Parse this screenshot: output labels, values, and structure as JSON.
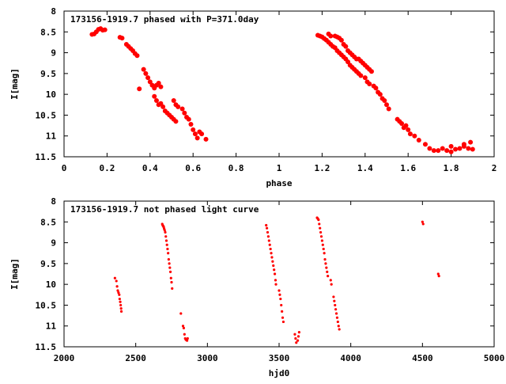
{
  "colors": {
    "points": "#ff0000",
    "frame": "#000000",
    "background": "#ffffff"
  },
  "chart_data": [
    {
      "type": "scatter",
      "title": "173156-1919.7 phased with P=371.0day",
      "xlabel": "phase",
      "ylabel": "I[mag]",
      "xlim": [
        0,
        2
      ],
      "ylim": [
        11.5,
        8
      ],
      "y_inverted": true,
      "xticks": [
        "0",
        "0.2",
        "0.4",
        "0.6",
        "0.8",
        "1",
        "1.2",
        "1.4",
        "1.6",
        "1.8",
        "2"
      ],
      "yticks": [
        "8",
        "8.5",
        "9",
        "9.5",
        "10",
        "10.5",
        "11",
        "11.5"
      ],
      "grid": false,
      "marker": "filled-circle",
      "points": [
        [
          0.13,
          8.56
        ],
        [
          0.14,
          8.55
        ],
        [
          0.15,
          8.5
        ],
        [
          0.16,
          8.44
        ],
        [
          0.17,
          8.42
        ],
        [
          0.18,
          8.46
        ],
        [
          0.19,
          8.45
        ],
        [
          0.26,
          8.63
        ],
        [
          0.27,
          8.65
        ],
        [
          0.29,
          8.8
        ],
        [
          0.3,
          8.85
        ],
        [
          0.31,
          8.9
        ],
        [
          0.32,
          8.95
        ],
        [
          0.33,
          9.02
        ],
        [
          0.34,
          9.07
        ],
        [
          0.35,
          9.87
        ],
        [
          0.37,
          9.4
        ],
        [
          0.38,
          9.5
        ],
        [
          0.39,
          9.6
        ],
        [
          0.4,
          9.7
        ],
        [
          0.41,
          9.78
        ],
        [
          0.42,
          9.85
        ],
        [
          0.43,
          9.78
        ],
        [
          0.44,
          9.73
        ],
        [
          0.45,
          9.82
        ],
        [
          0.42,
          10.05
        ],
        [
          0.43,
          10.15
        ],
        [
          0.44,
          10.25
        ],
        [
          0.45,
          10.22
        ],
        [
          0.46,
          10.3
        ],
        [
          0.47,
          10.4
        ],
        [
          0.48,
          10.45
        ],
        [
          0.49,
          10.5
        ],
        [
          0.5,
          10.55
        ],
        [
          0.51,
          10.6
        ],
        [
          0.52,
          10.65
        ],
        [
          0.51,
          10.15
        ],
        [
          0.52,
          10.25
        ],
        [
          0.53,
          10.3
        ],
        [
          0.55,
          10.35
        ],
        [
          0.56,
          10.45
        ],
        [
          0.57,
          10.55
        ],
        [
          0.58,
          10.6
        ],
        [
          0.59,
          10.72
        ],
        [
          0.6,
          10.85
        ],
        [
          0.61,
          10.95
        ],
        [
          0.62,
          11.05
        ],
        [
          0.63,
          10.9
        ],
        [
          0.64,
          10.95
        ],
        [
          0.66,
          11.08
        ],
        [
          1.18,
          8.58
        ],
        [
          1.19,
          8.6
        ],
        [
          1.2,
          8.62
        ],
        [
          1.21,
          8.66
        ],
        [
          1.22,
          8.7
        ],
        [
          1.23,
          8.75
        ],
        [
          1.24,
          8.8
        ],
        [
          1.25,
          8.85
        ],
        [
          1.23,
          8.55
        ],
        [
          1.24,
          8.6
        ],
        [
          1.26,
          8.6
        ],
        [
          1.27,
          8.62
        ],
        [
          1.28,
          8.65
        ],
        [
          1.29,
          8.7
        ],
        [
          1.26,
          8.88
        ],
        [
          1.27,
          8.95
        ],
        [
          1.28,
          9.0
        ],
        [
          1.29,
          9.05
        ],
        [
          1.3,
          9.1
        ],
        [
          1.31,
          9.15
        ],
        [
          1.32,
          9.22
        ],
        [
          1.3,
          8.8
        ],
        [
          1.31,
          8.85
        ],
        [
          1.32,
          8.95
        ],
        [
          1.33,
          9.0
        ],
        [
          1.34,
          9.05
        ],
        [
          1.35,
          9.1
        ],
        [
          1.36,
          9.15
        ],
        [
          1.33,
          9.3
        ],
        [
          1.34,
          9.35
        ],
        [
          1.35,
          9.4
        ],
        [
          1.36,
          9.45
        ],
        [
          1.37,
          9.5
        ],
        [
          1.38,
          9.55
        ],
        [
          1.37,
          9.15
        ],
        [
          1.38,
          9.2
        ],
        [
          1.39,
          9.25
        ],
        [
          1.4,
          9.3
        ],
        [
          1.41,
          9.35
        ],
        [
          1.42,
          9.4
        ],
        [
          1.43,
          9.45
        ],
        [
          1.4,
          9.6
        ],
        [
          1.41,
          9.7
        ],
        [
          1.42,
          9.75
        ],
        [
          1.44,
          9.8
        ],
        [
          1.45,
          9.85
        ],
        [
          1.46,
          9.95
        ],
        [
          1.47,
          10.0
        ],
        [
          1.48,
          10.1
        ],
        [
          1.49,
          10.15
        ],
        [
          1.5,
          10.25
        ],
        [
          1.51,
          10.35
        ],
        [
          1.55,
          10.6
        ],
        [
          1.56,
          10.65
        ],
        [
          1.57,
          10.7
        ],
        [
          1.58,
          10.8
        ],
        [
          1.59,
          10.75
        ],
        [
          1.6,
          10.85
        ],
        [
          1.61,
          10.95
        ],
        [
          1.63,
          11.0
        ],
        [
          1.65,
          11.1
        ],
        [
          1.68,
          11.2
        ],
        [
          1.7,
          11.3
        ],
        [
          1.72,
          11.35
        ],
        [
          1.74,
          11.35
        ],
        [
          1.76,
          11.3
        ],
        [
          1.78,
          11.35
        ],
        [
          1.8,
          11.38
        ],
        [
          1.82,
          11.32
        ],
        [
          1.84,
          11.3
        ],
        [
          1.86,
          11.25
        ],
        [
          1.88,
          11.3
        ],
        [
          1.9,
          11.32
        ],
        [
          1.8,
          11.25
        ],
        [
          1.86,
          11.2
        ],
        [
          1.89,
          11.15
        ]
      ]
    },
    {
      "type": "scatter",
      "title": "173156-1919.7 not phased light curve",
      "xlabel": "hjd0",
      "ylabel": "I[mag]",
      "xlim": [
        2000,
        5000
      ],
      "ylim": [
        11.5,
        8
      ],
      "y_inverted": true,
      "xticks": [
        "2000",
        "2500",
        "3000",
        "3500",
        "4000",
        "4500",
        "5000"
      ],
      "yticks": [
        "8",
        "8.5",
        "9",
        "9.5",
        "10",
        "10.5",
        "11",
        "11.5"
      ],
      "grid": false,
      "marker": "small-dot",
      "points": [
        [
          2355,
          9.85
        ],
        [
          2365,
          9.92
        ],
        [
          2370,
          10.05
        ],
        [
          2375,
          10.15
        ],
        [
          2380,
          10.2
        ],
        [
          2385,
          10.25
        ],
        [
          2388,
          10.35
        ],
        [
          2392,
          10.42
        ],
        [
          2395,
          10.5
        ],
        [
          2398,
          10.58
        ],
        [
          2400,
          10.65
        ],
        [
          2685,
          8.55
        ],
        [
          2688,
          8.58
        ],
        [
          2692,
          8.6
        ],
        [
          2695,
          8.62
        ],
        [
          2698,
          8.66
        ],
        [
          2702,
          8.7
        ],
        [
          2706,
          8.75
        ],
        [
          2710,
          8.85
        ],
        [
          2714,
          8.95
        ],
        [
          2718,
          9.05
        ],
        [
          2722,
          9.15
        ],
        [
          2726,
          9.25
        ],
        [
          2730,
          9.4
        ],
        [
          2734,
          9.5
        ],
        [
          2738,
          9.6
        ],
        [
          2742,
          9.7
        ],
        [
          2746,
          9.85
        ],
        [
          2750,
          9.95
        ],
        [
          2754,
          10.1
        ],
        [
          2815,
          10.7
        ],
        [
          2830,
          11.0
        ],
        [
          2835,
          11.05
        ],
        [
          2840,
          11.2
        ],
        [
          2845,
          11.3
        ],
        [
          2850,
          11.33
        ],
        [
          2858,
          11.35
        ],
        [
          2862,
          11.3
        ],
        [
          3410,
          8.58
        ],
        [
          3415,
          8.65
        ],
        [
          3420,
          8.75
        ],
        [
          3425,
          8.85
        ],
        [
          3430,
          8.95
        ],
        [
          3435,
          9.05
        ],
        [
          3440,
          9.15
        ],
        [
          3445,
          9.25
        ],
        [
          3450,
          9.35
        ],
        [
          3455,
          9.45
        ],
        [
          3460,
          9.55
        ],
        [
          3465,
          9.65
        ],
        [
          3470,
          9.75
        ],
        [
          3475,
          9.9
        ],
        [
          3478,
          10.0
        ],
        [
          3500,
          10.15
        ],
        [
          3505,
          10.25
        ],
        [
          3510,
          10.35
        ],
        [
          3515,
          10.5
        ],
        [
          3520,
          10.65
        ],
        [
          3525,
          10.8
        ],
        [
          3530,
          10.9
        ],
        [
          3610,
          11.2
        ],
        [
          3615,
          11.3
        ],
        [
          3620,
          11.4
        ],
        [
          3630,
          11.35
        ],
        [
          3635,
          11.25
        ],
        [
          3640,
          11.15
        ],
        [
          3765,
          8.4
        ],
        [
          3770,
          8.42
        ],
        [
          3775,
          8.45
        ],
        [
          3780,
          8.55
        ],
        [
          3785,
          8.65
        ],
        [
          3790,
          8.75
        ],
        [
          3795,
          8.85
        ],
        [
          3800,
          8.95
        ],
        [
          3805,
          9.05
        ],
        [
          3810,
          9.15
        ],
        [
          3815,
          9.25
        ],
        [
          3820,
          9.4
        ],
        [
          3825,
          9.5
        ],
        [
          3830,
          9.6
        ],
        [
          3835,
          9.7
        ],
        [
          3840,
          9.8
        ],
        [
          3860,
          9.9
        ],
        [
          3865,
          10.0
        ],
        [
          3880,
          10.3
        ],
        [
          3885,
          10.4
        ],
        [
          3890,
          10.5
        ],
        [
          3895,
          10.6
        ],
        [
          3900,
          10.7
        ],
        [
          3905,
          10.8
        ],
        [
          3910,
          10.9
        ],
        [
          3915,
          11.0
        ],
        [
          3920,
          11.08
        ],
        [
          4500,
          8.5
        ],
        [
          4505,
          8.55
        ],
        [
          4610,
          9.75
        ],
        [
          4615,
          9.8
        ]
      ]
    }
  ]
}
